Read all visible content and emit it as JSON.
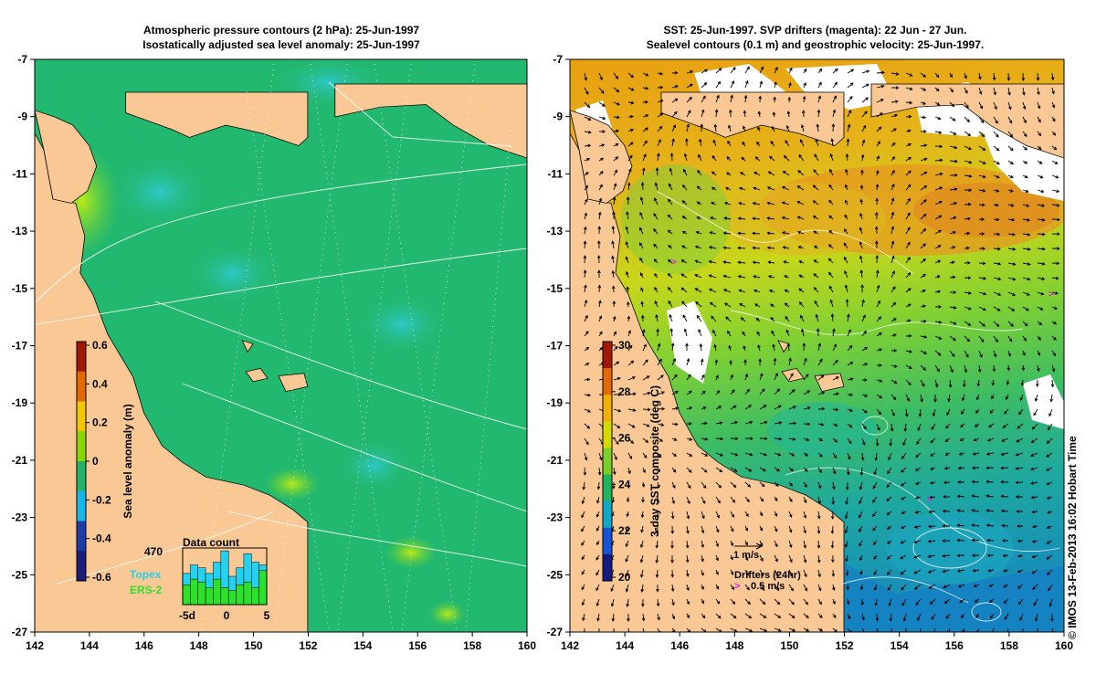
{
  "left_panel": {
    "title_line1": "Atmospheric pressure contours (2 hPa): 25-Jun-1997",
    "title_line2": "Isostatically adjusted sea level anomaly: 25-Jun-1997",
    "colorbar": {
      "label": "Sea level anomaly (m)",
      "ticks": [
        "0.6",
        "0.4",
        "0.2",
        "0",
        "-0.2",
        "-0.4",
        "-0.6"
      ],
      "colors": [
        "#a01800",
        "#e06a00",
        "#f4c800",
        "#8ad600",
        "#21b56a",
        "#16b6e6",
        "#1e3ca8",
        "#1c1c7a"
      ]
    },
    "data_count": {
      "title": "Data count",
      "max_label": "470",
      "series": [
        {
          "name": "Topex",
          "color": "#22d2ee",
          "values": [
            0.55,
            0.7,
            0.65,
            0.55,
            0.75,
            0.95,
            0.5,
            0.65,
            0.9,
            0.75,
            0.7
          ]
        },
        {
          "name": "ERS-2",
          "color": "#2ce02c",
          "values": [
            0.35,
            0.45,
            0.4,
            0.3,
            0.45,
            0.3,
            0.25,
            0.35,
            0.4,
            0.3,
            0.6
          ]
        }
      ],
      "x_ticks": [
        "-5d",
        "0",
        "5"
      ]
    }
  },
  "right_panel": {
    "title_line1": "SST: 25-Jun-1997. SVP drifters (magenta): 22 Jun - 27 Jun.",
    "title_line2": "Sealevel contours (0.1 m) and geostrophic velocity: 25-Jun-1997.",
    "colorbar": {
      "label": "3-day SST composite (deg C)",
      "ticks": [
        "30",
        "28",
        "26",
        "24",
        "22",
        "20"
      ],
      "colors": [
        "#a01800",
        "#e06a00",
        "#f0b000",
        "#d6d800",
        "#7ad02a",
        "#20b460",
        "#10a8c8",
        "#1656d6",
        "#141a80"
      ]
    },
    "velocity_scale": "1 m/s",
    "drifters_label": "Drifters (24hr)",
    "drifters_scale": "0.5 m/s",
    "drifter_symbol": ">"
  },
  "axes": {
    "lat_ticks": [
      "-7",
      "-9",
      "-11",
      "-13",
      "-15",
      "-17",
      "-19",
      "-21",
      "-23",
      "-25",
      "-27"
    ],
    "lon_ticks": [
      "142",
      "144",
      "146",
      "148",
      "150",
      "152",
      "154",
      "156",
      "158",
      "160"
    ]
  },
  "colors": {
    "land": "#f9c894",
    "sea_green": "#21b86e",
    "cloud": "#ffffff",
    "drifter": "#dd22dd"
  },
  "credit": "© IMOS 13-Feb-2013 16:02 Hobart Time"
}
